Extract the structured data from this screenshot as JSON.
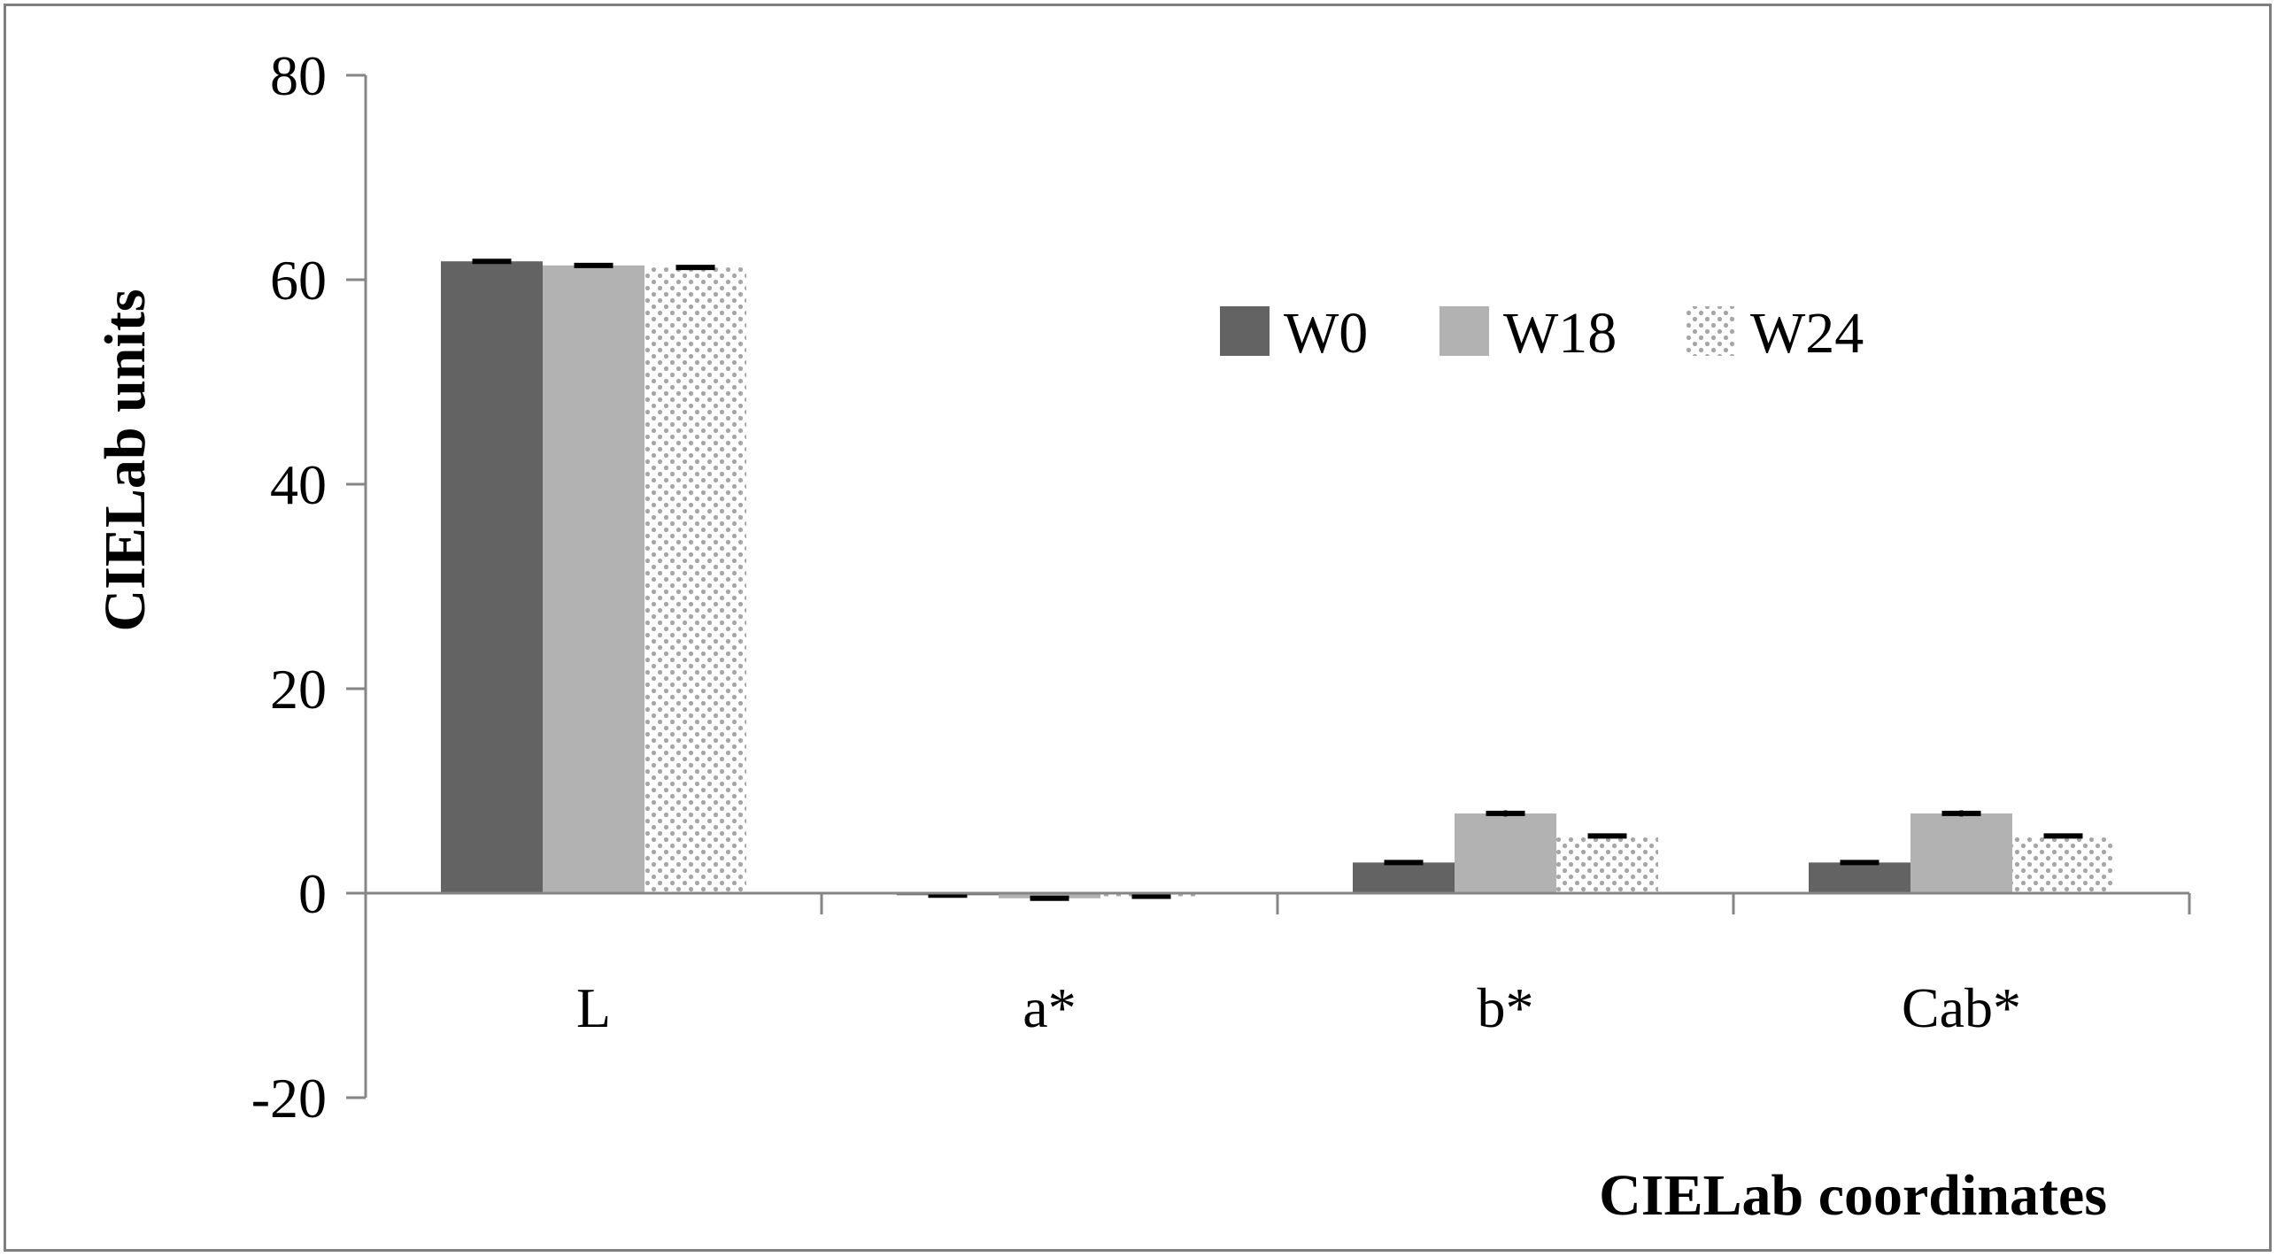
{
  "chart_data": {
    "type": "bar",
    "categories": [
      "L",
      "a*",
      "b*",
      "Cab*"
    ],
    "series": [
      {
        "name": "W0",
        "values": [
          61.8,
          -0.2,
          3.0,
          3.0
        ],
        "errors": [
          0.2,
          0.1,
          0.2,
          0.2
        ],
        "color": "#636363",
        "pattern": "solid"
      },
      {
        "name": "W18",
        "values": [
          61.4,
          -0.5,
          7.8,
          7.8
        ],
        "errors": [
          0.2,
          0.1,
          0.3,
          0.3
        ],
        "color": "#b2b2b2",
        "pattern": "solid"
      },
      {
        "name": "W24",
        "values": [
          61.2,
          -0.3,
          5.6,
          5.6
        ],
        "errors": [
          0.2,
          0.1,
          0.2,
          0.2
        ],
        "color": "#a6a6a6",
        "pattern": "dotted"
      }
    ],
    "ylabel": "CIELab units",
    "xlabel": "CIELab coordinates",
    "ylim": [
      -20,
      80
    ],
    "yticks": [
      80,
      60,
      40,
      20,
      0,
      -20
    ],
    "ytick_labels": [
      "80",
      "60",
      "40",
      "20",
      "0",
      "-20"
    ],
    "grid": false,
    "legend_position": "top-right"
  }
}
